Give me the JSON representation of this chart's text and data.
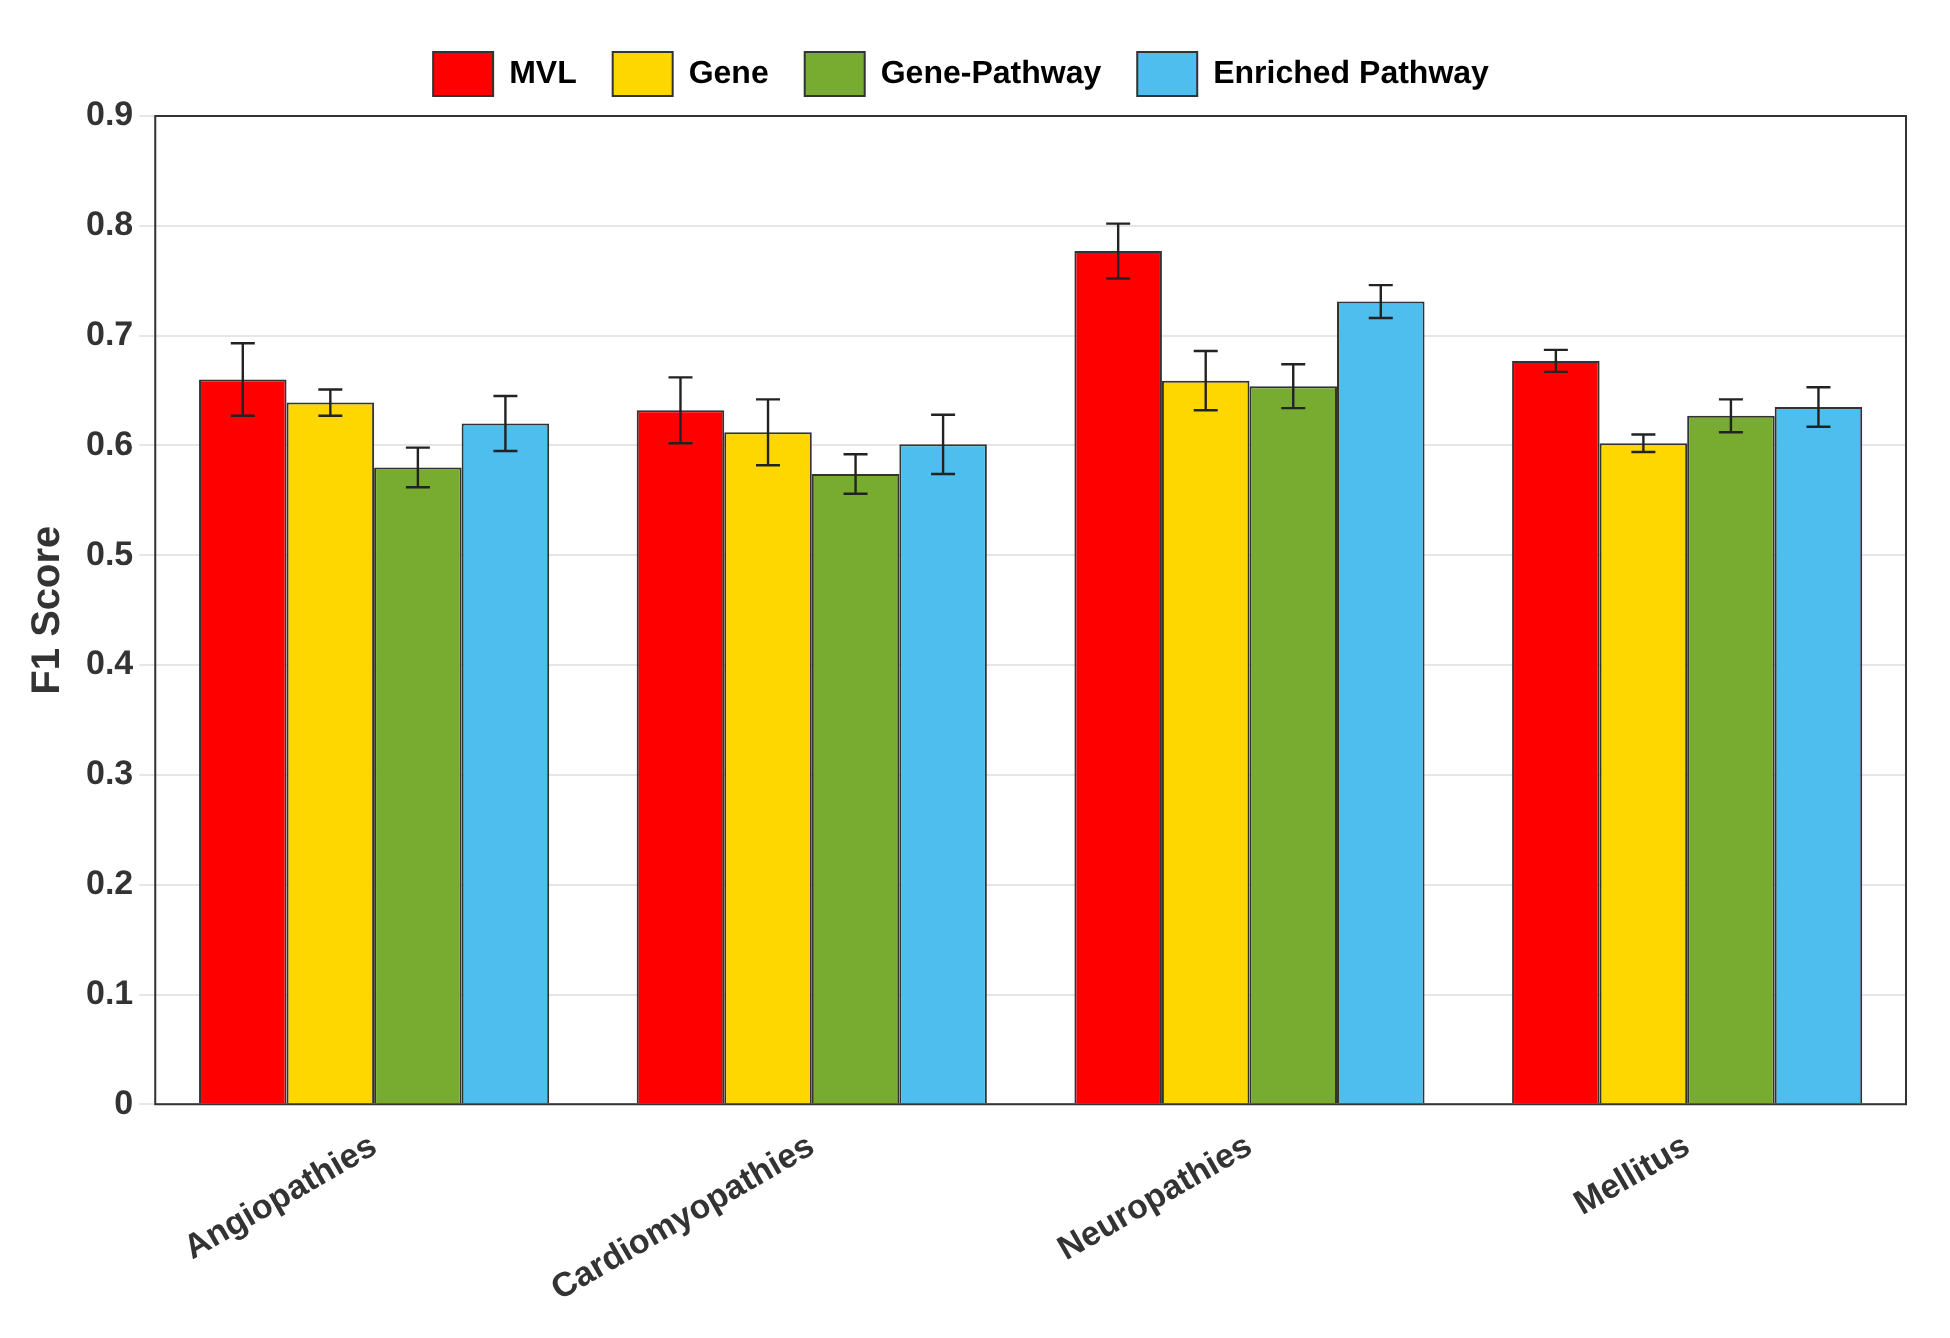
{
  "chart_data": {
    "type": "bar",
    "ylabel": "F1 Score",
    "categories": [
      "Angiopathies",
      "Cardiomyopathies",
      "Neuropathies",
      "Mellitus"
    ],
    "series": [
      {
        "name": "MVL",
        "color": "#ff0000",
        "values": [
          0.66,
          0.632,
          0.777,
          0.677
        ],
        "errors": [
          0.033,
          0.03,
          0.025,
          0.01
        ]
      },
      {
        "name": "Gene",
        "color": "#ffd700",
        "values": [
          0.639,
          0.612,
          0.659,
          0.602
        ],
        "errors": [
          0.012,
          0.03,
          0.027,
          0.008
        ]
      },
      {
        "name": "Gene-Pathway",
        "color": "#77ac30",
        "values": [
          0.58,
          0.574,
          0.654,
          0.627
        ],
        "errors": [
          0.018,
          0.018,
          0.02,
          0.015
        ]
      },
      {
        "name": "Enriched Pathway",
        "color": "#4dbeee",
        "values": [
          0.62,
          0.601,
          0.731,
          0.635
        ],
        "errors": [
          0.025,
          0.027,
          0.015,
          0.018
        ]
      }
    ],
    "ylim": [
      0,
      0.9
    ],
    "yticks": [
      0,
      0.1,
      0.2,
      0.3,
      0.4,
      0.5,
      0.6,
      0.7,
      0.8,
      0.9
    ],
    "grid": "y",
    "legend": "top"
  }
}
